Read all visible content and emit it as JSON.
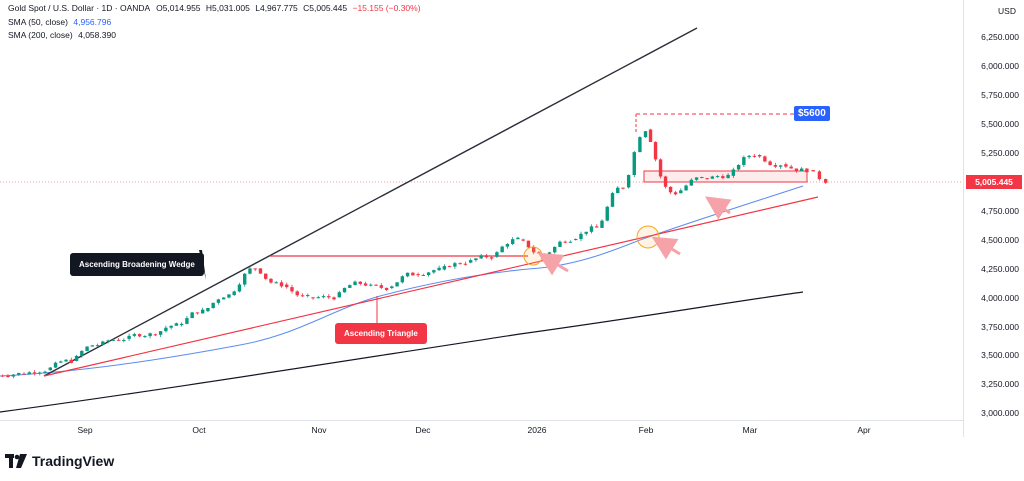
{
  "legend": {
    "symbol": "Gold Spot / U.S. Dollar · 1D · OANDA",
    "open": "O5,014.955",
    "high": "H5,031.005",
    "low": "L4,967.775",
    "close": "C5,005.445",
    "change": "−15.155 (−0.30%)",
    "sma50_label": "SMA (50, close)",
    "sma50_value": "4,956.796",
    "sma200_label": "SMA (200, close)",
    "sma200_value": "4,058.390"
  },
  "axis": {
    "currency": "USD",
    "price_ticks": [
      "6,250.000",
      "6,000.000",
      "5,750.000",
      "5,500.000",
      "5,250.000",
      "4,750.000",
      "4,500.000",
      "4,250.000",
      "4,000.000",
      "3,750.000",
      "3,500.000",
      "3,250.000",
      "3,000.000"
    ],
    "current_price": "5,005.445",
    "time_labels": [
      "Sep",
      "Oct",
      "Nov",
      "Dec",
      "2026",
      "Feb",
      "Mar",
      "Apr"
    ]
  },
  "annotations": {
    "wedge": "Ascending Broadening Wedge",
    "triangle": "Ascending Triangle",
    "target": "$5600"
  },
  "brand": "TradingView",
  "colors": {
    "up": "#089981",
    "down": "#f23645",
    "sma50": "#2962ff",
    "sma200": "#131722",
    "annotation_red": "#f23645"
  },
  "chart_data": {
    "type": "candlestick",
    "title": "Gold Spot / U.S. Dollar · 1D · OANDA",
    "ylim": [
      3000,
      6400
    ],
    "xlim": [
      "2025-08-10",
      "2026-04-10"
    ],
    "grid": false,
    "weekly_closes": [
      {
        "x": "2025-08-15",
        "y": 3340
      },
      {
        "x": "2025-08-22",
        "y": 3370
      },
      {
        "x": "2025-08-29",
        "y": 3450
      },
      {
        "x": "2025-09-05",
        "y": 3590
      },
      {
        "x": "2025-09-12",
        "y": 3640
      },
      {
        "x": "2025-09-19",
        "y": 3680
      },
      {
        "x": "2025-09-26",
        "y": 3760
      },
      {
        "x": "2025-10-03",
        "y": 3880
      },
      {
        "x": "2025-10-10",
        "y": 4020
      },
      {
        "x": "2025-10-17",
        "y": 4250
      },
      {
        "x": "2025-10-24",
        "y": 4110
      },
      {
        "x": "2025-10-31",
        "y": 4000
      },
      {
        "x": "2025-11-07",
        "y": 4000
      },
      {
        "x": "2025-11-14",
        "y": 4120
      },
      {
        "x": "2025-11-21",
        "y": 4080
      },
      {
        "x": "2025-11-28",
        "y": 4200
      },
      {
        "x": "2025-12-05",
        "y": 4240
      },
      {
        "x": "2025-12-12",
        "y": 4300
      },
      {
        "x": "2025-12-19",
        "y": 4350
      },
      {
        "x": "2025-12-26",
        "y": 4500
      },
      {
        "x": "2026-01-02",
        "y": 4370
      },
      {
        "x": "2026-01-09",
        "y": 4500
      },
      {
        "x": "2026-01-16",
        "y": 4600
      },
      {
        "x": "2026-01-23",
        "y": 4950
      },
      {
        "x": "2026-01-29",
        "y": 5450
      },
      {
        "x": "2026-02-06",
        "y": 4900
      },
      {
        "x": "2026-02-13",
        "y": 5030
      },
      {
        "x": "2026-02-20",
        "y": 5050
      },
      {
        "x": "2026-02-27",
        "y": 5230
      },
      {
        "x": "2026-03-06",
        "y": 5150
      },
      {
        "x": "2026-03-13",
        "y": 5100
      },
      {
        "x": "2026-03-18",
        "y": 5005
      }
    ],
    "series": [
      {
        "name": "SMA (50, close)",
        "x": [
          "2025-08-10",
          "2025-09-15",
          "2025-10-15",
          "2025-11-15",
          "2025-12-15",
          "2026-01-15",
          "2026-02-15",
          "2026-03-18"
        ],
        "y": [
          3270,
          3350,
          3520,
          3850,
          4150,
          4300,
          4640,
          4957
        ]
      },
      {
        "name": "SMA (200, close)",
        "x": [
          "2025-08-10",
          "2025-10-15",
          "2025-12-15",
          "2026-02-15",
          "2026-03-18"
        ],
        "y": [
          3010,
          3300,
          3580,
          3850,
          4058
        ]
      }
    ]
  }
}
